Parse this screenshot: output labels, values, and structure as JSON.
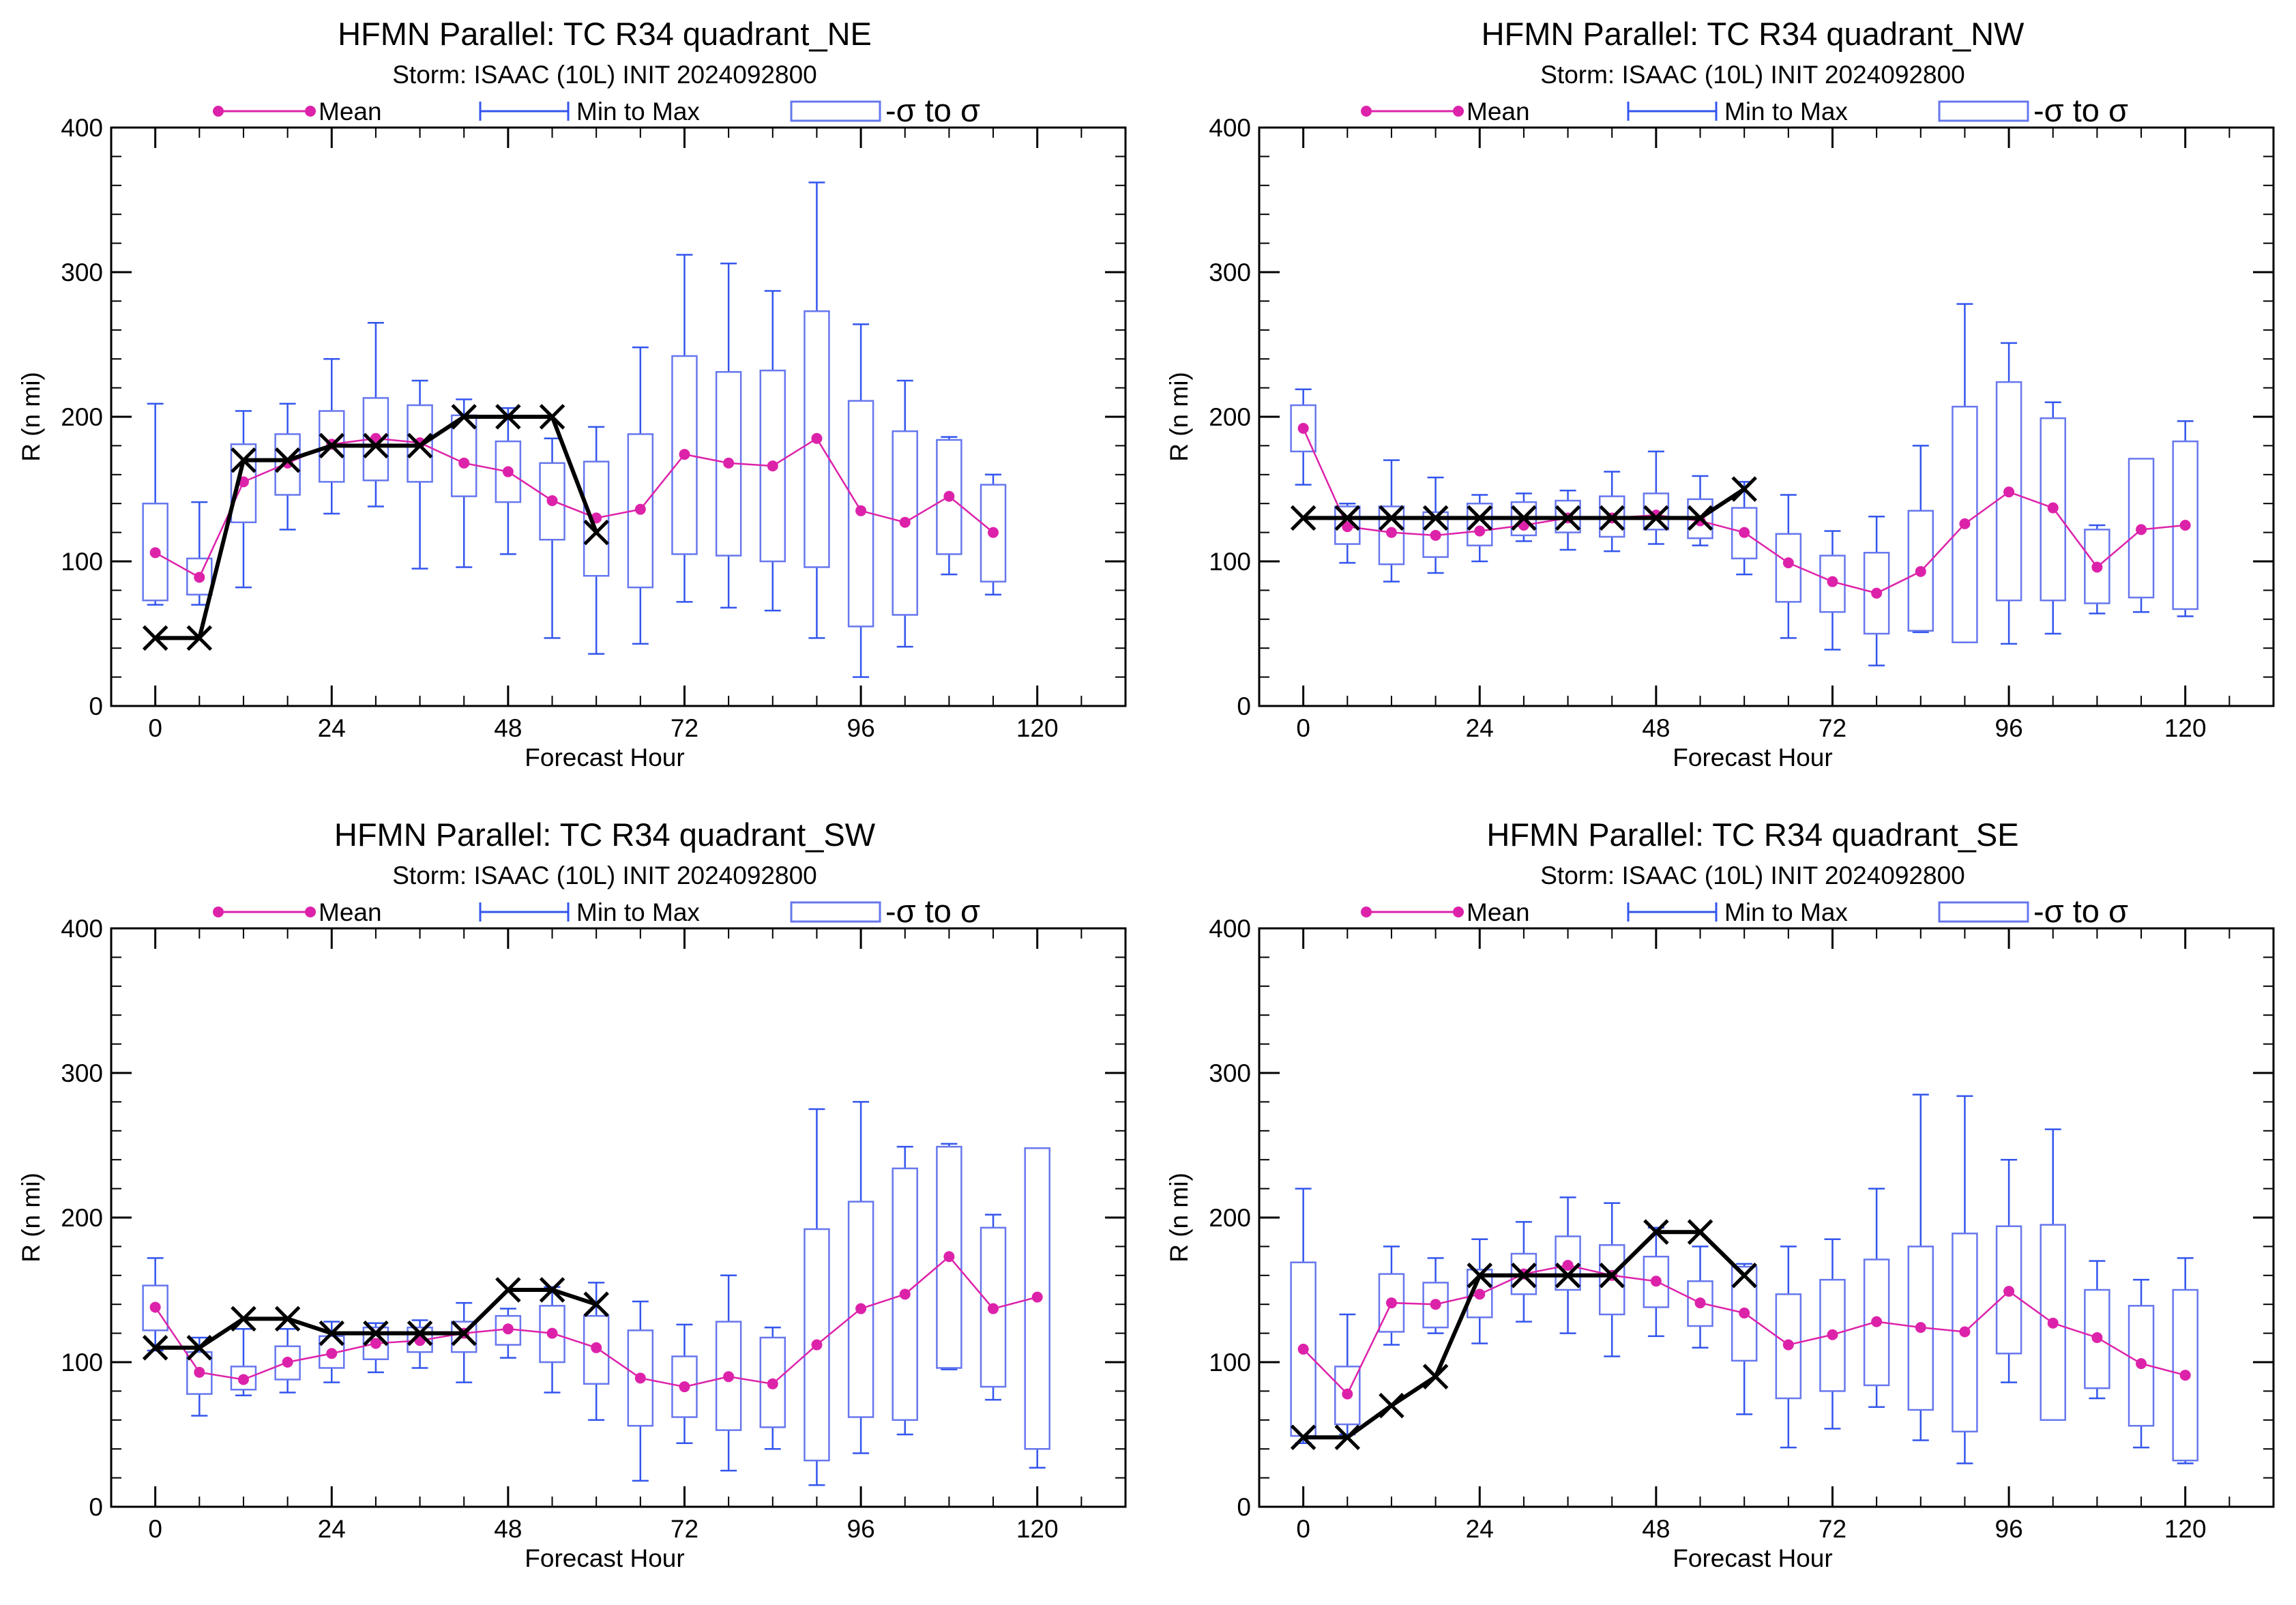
{
  "colors": {
    "mean": "#dd22aa",
    "minmax": "#3355ee",
    "sigma": "#6677ee",
    "verification": "#000000",
    "axis": "#000000"
  },
  "legend": {
    "mean": "Mean",
    "minmax": "Min to Max",
    "sigma": "-σ to σ"
  },
  "chart_data": [
    {
      "type": "boxplot+line",
      "title": "HFMN Parallel: TC  R34 quadrant_NE",
      "subtitle": "Storm: ISAAC (10L) INIT 2024092800",
      "xlabel": "Forecast Hour",
      "ylabel": "R (n mi)",
      "xlim": [
        -6,
        132
      ],
      "ylim": [
        0,
        400
      ],
      "xticks": [
        0,
        24,
        48,
        72,
        96,
        120
      ],
      "yticks": [
        0,
        100,
        200,
        300,
        400
      ],
      "hours": [
        0,
        6,
        12,
        18,
        24,
        30,
        36,
        42,
        48,
        54,
        60,
        66,
        72,
        78,
        84,
        90,
        96,
        102,
        108,
        114
      ],
      "mean": [
        106,
        89,
        155,
        168,
        181,
        185,
        182,
        168,
        162,
        142,
        130,
        136,
        174,
        168,
        166,
        185,
        135,
        127,
        145,
        120
      ],
      "min": [
        70,
        70,
        82,
        122,
        133,
        138,
        95,
        96,
        105,
        47,
        36,
        43,
        72,
        68,
        66,
        47,
        20,
        41,
        91,
        77
      ],
      "max": [
        209,
        141,
        204,
        209,
        240,
        265,
        225,
        212,
        206,
        185,
        193,
        248,
        312,
        306,
        287,
        362,
        264,
        225,
        186,
        160
      ],
      "sigma_low": [
        73,
        77,
        127,
        146,
        155,
        156,
        155,
        145,
        141,
        115,
        90,
        82,
        105,
        104,
        100,
        96,
        55,
        63,
        105,
        86
      ],
      "sigma_high": [
        140,
        102,
        181,
        188,
        204,
        213,
        208,
        201,
        183,
        168,
        169,
        188,
        242,
        231,
        232,
        273,
        211,
        190,
        184,
        153
      ],
      "verif_hours": [
        0,
        6,
        12,
        18,
        24,
        30,
        36,
        42,
        48,
        54,
        60
      ],
      "verification": [
        47,
        47,
        170,
        170,
        180,
        180,
        180,
        200,
        200,
        200,
        120
      ]
    },
    {
      "type": "boxplot+line",
      "title": "HFMN Parallel: TC  R34 quadrant_NW",
      "subtitle": "Storm: ISAAC (10L) INIT 2024092800",
      "xlabel": "Forecast Hour",
      "ylabel": "R (n mi)",
      "xlim": [
        -6,
        132
      ],
      "ylim": [
        0,
        400
      ],
      "xticks": [
        0,
        24,
        48,
        72,
        96,
        120
      ],
      "yticks": [
        0,
        100,
        200,
        300,
        400
      ],
      "hours": [
        0,
        6,
        12,
        18,
        24,
        30,
        36,
        42,
        48,
        54,
        60,
        66,
        72,
        78,
        84,
        90,
        96,
        102,
        108,
        114,
        120
      ],
      "mean": [
        192,
        124,
        120,
        118,
        121,
        125,
        130,
        130,
        132,
        128,
        120,
        99,
        86,
        78,
        93,
        126,
        148,
        137,
        96,
        122,
        125
      ],
      "min": [
        153,
        99,
        86,
        92,
        100,
        114,
        108,
        107,
        112,
        111,
        91,
        47,
        39,
        28,
        51,
        44,
        43,
        50,
        64,
        65,
        62
      ],
      "max": [
        219,
        140,
        170,
        158,
        146,
        147,
        149,
        162,
        176,
        159,
        155,
        146,
        121,
        131,
        180,
        278,
        251,
        210,
        125,
        170,
        197
      ],
      "sigma_low": [
        176,
        112,
        98,
        103,
        111,
        118,
        120,
        117,
        122,
        116,
        102,
        72,
        65,
        50,
        52,
        44,
        73,
        73,
        71,
        75,
        67
      ],
      "sigma_high": [
        208,
        138,
        138,
        134,
        140,
        141,
        142,
        145,
        147,
        143,
        137,
        119,
        104,
        106,
        135,
        207,
        224,
        199,
        122,
        171,
        183
      ],
      "verif_hours": [
        0,
        6,
        12,
        18,
        24,
        30,
        36,
        42,
        48,
        54,
        60
      ],
      "verification": [
        130,
        130,
        130,
        130,
        130,
        130,
        130,
        130,
        130,
        130,
        150
      ]
    },
    {
      "type": "boxplot+line",
      "title": "HFMN Parallel: TC  R34 quadrant_SW",
      "subtitle": "Storm: ISAAC (10L) INIT 2024092800",
      "xlabel": "Forecast Hour",
      "ylabel": "R (n mi)",
      "xlim": [
        -6,
        132
      ],
      "ylim": [
        0,
        400
      ],
      "xticks": [
        0,
        24,
        48,
        72,
        96,
        120
      ],
      "yticks": [
        0,
        100,
        200,
        300,
        400
      ],
      "hours": [
        0,
        6,
        12,
        18,
        24,
        30,
        36,
        42,
        48,
        54,
        60,
        66,
        72,
        78,
        84,
        90,
        96,
        102,
        108,
        114,
        120
      ],
      "mean": [
        138,
        93,
        88,
        100,
        106,
        113,
        115,
        120,
        123,
        120,
        110,
        89,
        83,
        90,
        85,
        112,
        137,
        147,
        173,
        137,
        145
      ],
      "min": [
        108,
        63,
        77,
        79,
        86,
        93,
        96,
        86,
        103,
        79,
        60,
        18,
        44,
        25,
        40,
        15,
        37,
        50,
        95,
        74,
        27
      ],
      "max": [
        172,
        117,
        123,
        123,
        128,
        127,
        129,
        141,
        137,
        152,
        155,
        142,
        126,
        160,
        124,
        275,
        280,
        249,
        251,
        202,
        248
      ],
      "sigma_low": [
        122,
        78,
        81,
        88,
        96,
        102,
        107,
        107,
        112,
        100,
        85,
        56,
        62,
        53,
        55,
        32,
        62,
        60,
        96,
        83,
        40
      ],
      "sigma_high": [
        153,
        107,
        97,
        111,
        118,
        124,
        124,
        128,
        132,
        139,
        132,
        122,
        104,
        128,
        117,
        192,
        211,
        234,
        249,
        193,
        248
      ],
      "verif_hours": [
        0,
        6,
        12,
        18,
        24,
        30,
        36,
        42,
        48,
        54,
        60
      ],
      "verification": [
        110,
        110,
        130,
        130,
        120,
        120,
        120,
        120,
        150,
        150,
        140
      ]
    },
    {
      "type": "boxplot+line",
      "title": "HFMN Parallel: TC  R34 quadrant_SE",
      "subtitle": "Storm: ISAAC (10L) INIT 2024092800",
      "xlabel": "Forecast Hour",
      "ylabel": "R (n mi)",
      "xlim": [
        -6,
        132
      ],
      "ylim": [
        0,
        400
      ],
      "xticks": [
        0,
        24,
        48,
        72,
        96,
        120
      ],
      "yticks": [
        0,
        100,
        200,
        300,
        400
      ],
      "hours": [
        0,
        6,
        12,
        18,
        24,
        30,
        36,
        42,
        48,
        54,
        60,
        66,
        72,
        78,
        84,
        90,
        96,
        102,
        108,
        114,
        120
      ],
      "mean": [
        109,
        78,
        141,
        140,
        147,
        161,
        167,
        160,
        156,
        141,
        134,
        112,
        119,
        128,
        124,
        121,
        149,
        127,
        117,
        99,
        91
      ],
      "min": [
        44,
        50,
        112,
        120,
        113,
        128,
        120,
        104,
        118,
        110,
        64,
        41,
        54,
        69,
        46,
        30,
        86,
        82,
        75,
        41,
        30
      ],
      "max": [
        220,
        133,
        180,
        172,
        185,
        197,
        214,
        210,
        193,
        180,
        168,
        180,
        185,
        220,
        285,
        284,
        240,
        261,
        170,
        157,
        172
      ],
      "sigma_low": [
        49,
        57,
        121,
        124,
        131,
        147,
        150,
        133,
        138,
        125,
        101,
        75,
        80,
        84,
        67,
        52,
        106,
        60,
        82,
        56,
        32
      ],
      "sigma_high": [
        169,
        97,
        161,
        155,
        164,
        175,
        187,
        181,
        173,
        156,
        166,
        147,
        157,
        171,
        180,
        189,
        194,
        195,
        150,
        139,
        150
      ],
      "verif_hours": [
        0,
        6,
        12,
        18,
        24,
        30,
        36,
        42,
        48,
        54,
        60
      ],
      "verification": [
        48,
        48,
        70,
        90,
        160,
        160,
        160,
        160,
        190,
        190,
        160
      ]
    }
  ]
}
